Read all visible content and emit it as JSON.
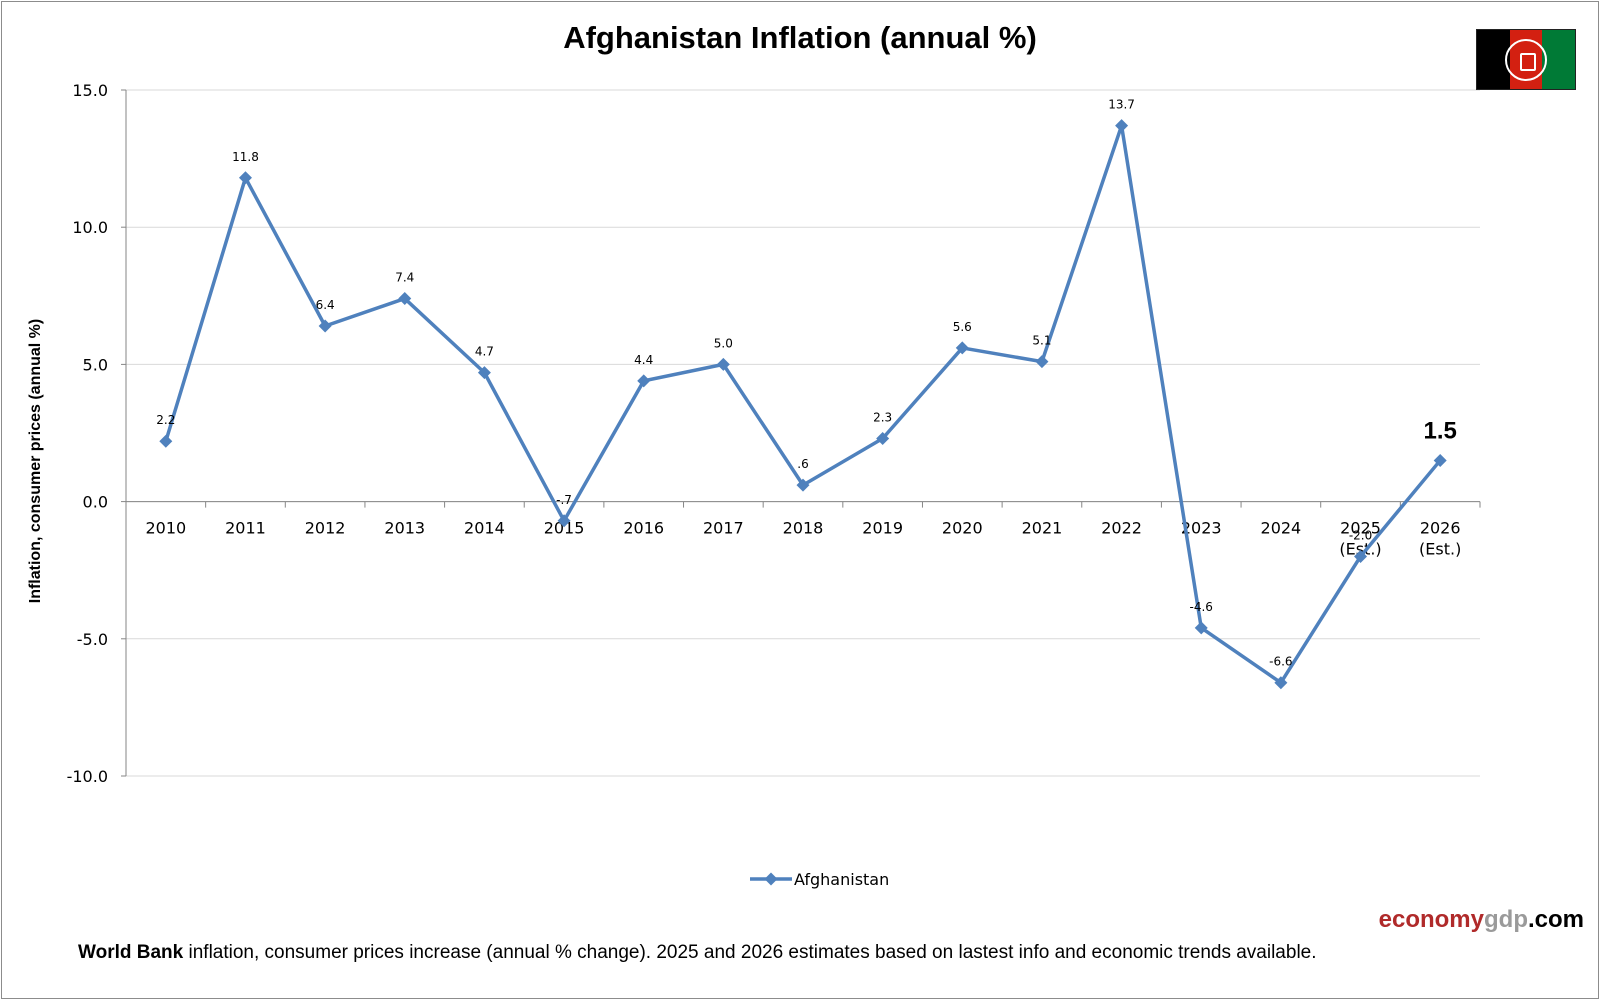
{
  "footer": {
    "source_bold": "World Bank",
    "source_text": " inflation, consumer prices increase (annual % change).  2025 and 2026 estimates based on lastest info and economic trends available.",
    "brand_part1": "economy",
    "brand_part2": "gdp",
    "brand_part3": ".com"
  },
  "colors": {
    "series": "#4f81bd",
    "flag_black": "#000000",
    "flag_red": "#d32011",
    "flag_green": "#007a36",
    "brand_red": "#b02a2a",
    "brand_gray": "#9a9a9a"
  },
  "chart_data": {
    "type": "line",
    "title": "Afghanistan Inflation (annual %)",
    "ylabel": "Inflation, consumer prices (annual %)",
    "xlabel": "",
    "categories": [
      "2010",
      "2011",
      "2012",
      "2013",
      "2014",
      "2015",
      "2016",
      "2017",
      "2018",
      "2019",
      "2020",
      "2021",
      "2022",
      "2023",
      "2024",
      "2025\n(Est.)",
      "2026\n(Est.)"
    ],
    "series": [
      {
        "name": "Afghanistan",
        "values": [
          2.2,
          11.8,
          6.4,
          7.4,
          4.7,
          -0.7,
          4.4,
          5.0,
          0.6,
          2.3,
          5.6,
          5.1,
          13.7,
          -4.6,
          -6.6,
          -2.0,
          1.5
        ],
        "labels": [
          "2.2",
          "11.8",
          "6.4",
          "7.4",
          "4.7",
          "-.7",
          "4.4",
          "5.0",
          ".6",
          "2.3",
          "5.6",
          "5.1",
          "13.7",
          "-4.6",
          "-6.6",
          "-2.0",
          "1.5"
        ],
        "highlight_last": true
      }
    ],
    "ylim": [
      -10,
      15
    ],
    "yticks": [
      15,
      10,
      5,
      0,
      -5,
      -10
    ],
    "ytick_labels": [
      "15.0",
      "10.0",
      "5.0",
      "0.0",
      "-5.0",
      "-10.0"
    ],
    "grid": true,
    "legend": "bottom-center",
    "marker": "diamond"
  }
}
